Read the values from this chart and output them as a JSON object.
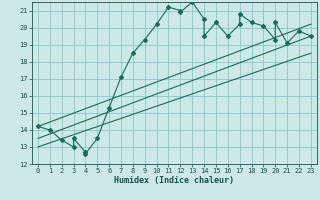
{
  "title": "",
  "xlabel": "Humidex (Indice chaleur)",
  "ylabel": "",
  "bg_color": "#cce8e8",
  "grid_color": "#88c8c8",
  "line_color": "#1a6b5a",
  "xlim": [
    -0.5,
    23.5
  ],
  "ylim": [
    12,
    21.5
  ],
  "xticks": [
    0,
    1,
    2,
    3,
    4,
    5,
    6,
    7,
    8,
    9,
    10,
    11,
    12,
    13,
    14,
    15,
    16,
    17,
    18,
    19,
    20,
    21,
    22,
    23
  ],
  "yticks": [
    12,
    13,
    14,
    15,
    16,
    17,
    18,
    19,
    20,
    21
  ],
  "main_x": [
    0,
    1,
    2,
    3,
    3,
    4,
    4,
    5,
    6,
    7,
    8,
    9,
    10,
    11,
    12,
    12,
    13,
    14,
    14,
    15,
    16,
    17,
    17,
    18,
    19,
    20,
    20,
    21,
    22,
    23
  ],
  "main_y": [
    14.2,
    14.0,
    13.4,
    13.0,
    13.5,
    12.7,
    12.6,
    13.5,
    15.3,
    17.1,
    18.5,
    19.3,
    20.2,
    21.2,
    21.0,
    20.9,
    21.5,
    20.5,
    19.5,
    20.3,
    19.5,
    20.2,
    20.8,
    20.3,
    20.1,
    19.3,
    20.3,
    19.1,
    19.8,
    19.5
  ],
  "line1_x": [
    0,
    23
  ],
  "line1_y": [
    14.2,
    20.2
  ],
  "line2_x": [
    0,
    23
  ],
  "line2_y": [
    13.5,
    19.5
  ],
  "line3_x": [
    0,
    23
  ],
  "line3_y": [
    13.0,
    18.5
  ]
}
